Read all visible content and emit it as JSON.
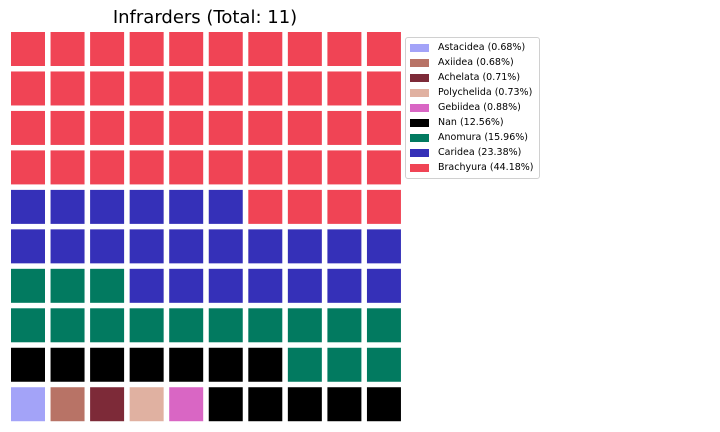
{
  "chart_data": {
    "type": "waffle",
    "title": "Infrarders (Total: 11)",
    "grid": {
      "rows": 10,
      "columns": 10
    },
    "series": [
      {
        "name": "Astacidea",
        "label": "Astacidea (0.68%)",
        "percent": 0.68,
        "squares": 1,
        "color": "#a3a3f8"
      },
      {
        "name": "Axiidea",
        "label": "Axiidea (0.68%)",
        "percent": 0.68,
        "squares": 1,
        "color": "#b87366"
      },
      {
        "name": "Achelata",
        "label": "Achelata (0.71%)",
        "percent": 0.71,
        "squares": 1,
        "color": "#7d2a38"
      },
      {
        "name": "Polychelida",
        "label": "Polychelida (0.73%)",
        "percent": 0.73,
        "squares": 1,
        "color": "#e0b1a1"
      },
      {
        "name": "Gebiidea",
        "label": "Gebiidea (0.88%)",
        "percent": 0.88,
        "squares": 1,
        "color": "#d966c4"
      },
      {
        "name": "Nan",
        "label": "Nan (12.56%)",
        "percent": 12.56,
        "squares": 12,
        "color": "#000000"
      },
      {
        "name": "Anomura",
        "label": "Anomura (15.96%)",
        "percent": 15.96,
        "squares": 16,
        "color": "#027a60"
      },
      {
        "name": "Caridea",
        "label": "Caridea (23.38%)",
        "percent": 23.38,
        "squares": 23,
        "color": "#3530b8"
      },
      {
        "name": "Brachyura",
        "label": "Brachyura (44.18%)",
        "percent": 44.18,
        "squares": 44,
        "color": "#f04455"
      }
    ],
    "fill_order": "bottom-left, row by row upward",
    "legend_position": "right"
  }
}
